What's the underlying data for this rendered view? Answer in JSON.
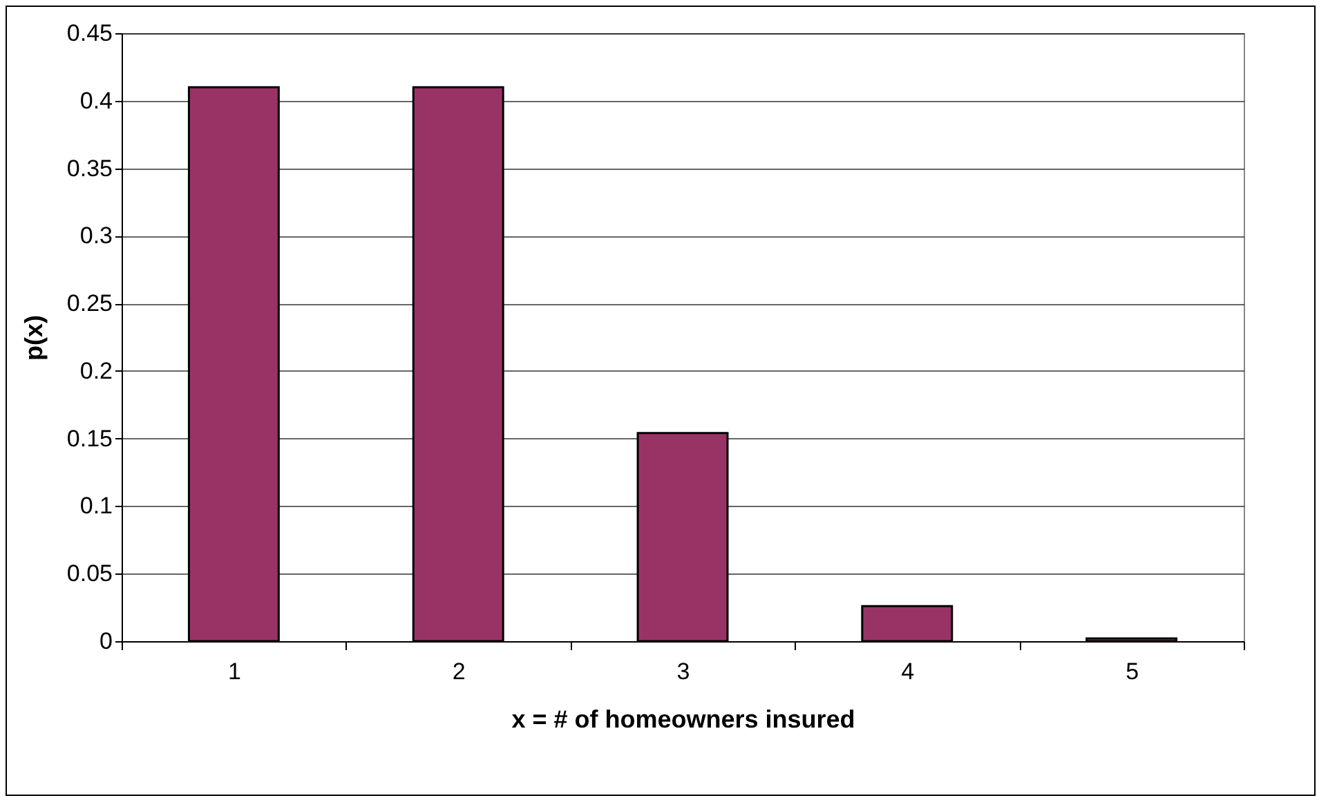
{
  "chart_data": {
    "type": "bar",
    "xlabel": "x = # of homeowners insured",
    "ylabel": "p(x)",
    "categories": [
      "1",
      "2",
      "3",
      "4",
      "5"
    ],
    "values": [
      0.41,
      0.41,
      0.154,
      0.026,
      0.002
    ],
    "color": "#993366",
    "ylim": [
      0,
      0.45
    ],
    "yticks": [
      0,
      0.05,
      0.1,
      0.15,
      0.2,
      0.25,
      0.3,
      0.35,
      0.4,
      0.45
    ],
    "grid": "y"
  }
}
